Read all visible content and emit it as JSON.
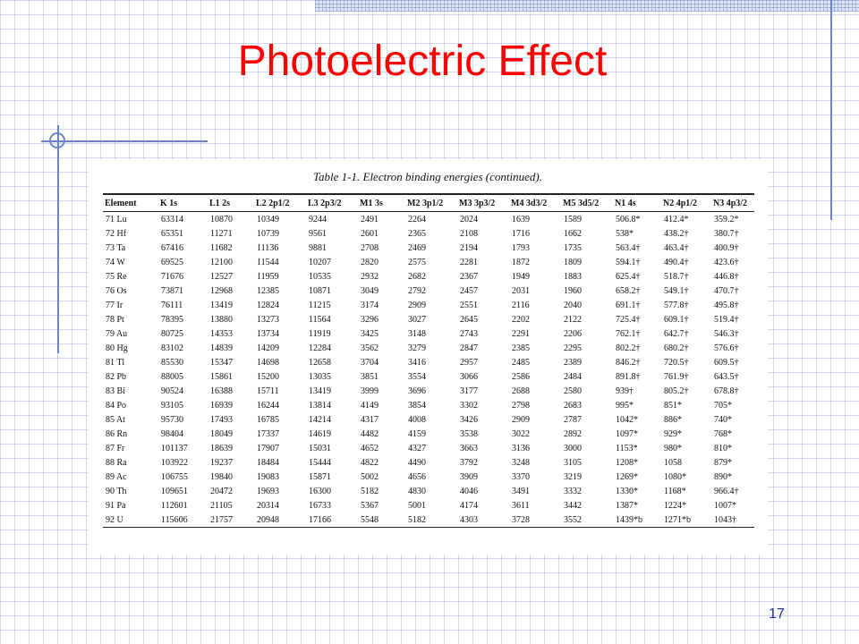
{
  "slide": {
    "title": "Photoelectric Effect",
    "page_number": "17",
    "accent_color": "#6d82c4",
    "title_color": "#ff0000"
  },
  "table": {
    "caption": "Table 1-1.  Electron binding energies (continued).",
    "headers": [
      "Element",
      "K 1s",
      "L1 2s",
      "L2 2p1/2",
      "L3 2p3/2",
      "M1 3s",
      "M2 3p1/2",
      "M3 3p3/2",
      "M4 3d3/2",
      "M5 3d5/2",
      "N1 4s",
      "N2 4p1/2",
      "N3 4p3/2"
    ],
    "rows": [
      [
        "71  Lu",
        "63314",
        "10870",
        "10349",
        "9244",
        "2491",
        "2264",
        "2024",
        "1639",
        "1589",
        "506.8*",
        "412.4*",
        "359.2*"
      ],
      [
        "72  Hf",
        "65351",
        "11271",
        "10739",
        "9561",
        "2601",
        "2365",
        "2108",
        "1716",
        "1662",
        "538*",
        "438.2†",
        "380.7†"
      ],
      [
        "73  Ta",
        "67416",
        "11682",
        "11136",
        "9881",
        "2708",
        "2469",
        "2194",
        "1793",
        "1735",
        "563.4†",
        "463.4†",
        "400.9†"
      ],
      [
        "74  W",
        "69525",
        "12100",
        "11544",
        "10207",
        "2820",
        "2575",
        "2281",
        "1872",
        "1809",
        "594.1†",
        "490.4†",
        "423.6†"
      ],
      [
        "75  Re",
        "71676",
        "12527",
        "11959",
        "10535",
        "2932",
        "2682",
        "2367",
        "1949",
        "1883",
        "625.4†",
        "518.7†",
        "446.8†"
      ],
      [
        "76  Os",
        "73871",
        "12968",
        "12385",
        "10871",
        "3049",
        "2792",
        "2457",
        "2031",
        "1960",
        "658.2†",
        "549.1†",
        "470.7†"
      ],
      [
        "77  Ir",
        "76111",
        "13419",
        "12824",
        "11215",
        "3174",
        "2909",
        "2551",
        "2116",
        "2040",
        "691.1†",
        "577.8†",
        "495.8†"
      ],
      [
        "78  Pt",
        "78395",
        "13880",
        "13273",
        "11564",
        "3296",
        "3027",
        "2645",
        "2202",
        "2122",
        "725.4†",
        "609.1†",
        "519.4†"
      ],
      [
        "79  Au",
        "80725",
        "14353",
        "13734",
        "11919",
        "3425",
        "3148",
        "2743",
        "2291",
        "2206",
        "762.1†",
        "642.7†",
        "546.3†"
      ],
      [
        "80  Hg",
        "83102",
        "14839",
        "14209",
        "12284",
        "3562",
        "3279",
        "2847",
        "2385",
        "2295",
        "802.2†",
        "680.2†",
        "576.6†"
      ],
      [
        "81  Tl",
        "85530",
        "15347",
        "14698",
        "12658",
        "3704",
        "3416",
        "2957",
        "2485",
        "2389",
        "846.2†",
        "720.5†",
        "609.5†"
      ],
      [
        "82  Pb",
        "88005",
        "15861",
        "15200",
        "13035",
        "3851",
        "3554",
        "3066",
        "2586",
        "2484",
        "891.8†",
        "761.9†",
        "643.5†"
      ],
      [
        "83  Bi",
        "90524",
        "16388",
        "15711",
        "13419",
        "3999",
        "3696",
        "3177",
        "2688",
        "2580",
        "939†",
        "805.2†",
        "678.8†"
      ],
      [
        "84  Po",
        "93105",
        "16939",
        "16244",
        "13814",
        "4149",
        "3854",
        "3302",
        "2798",
        "2683",
        "995*",
        "851*",
        "705*"
      ],
      [
        "85  At",
        "95730",
        "17493",
        "16785",
        "14214",
        "4317",
        "4008",
        "3426",
        "2909",
        "2787",
        "1042*",
        "886*",
        "740*"
      ],
      [
        "86  Rn",
        "98404",
        "18049",
        "17337",
        "14619",
        "4482",
        "4159",
        "3538",
        "3022",
        "2892",
        "1097*",
        "929*",
        "768*"
      ],
      [
        "87  Fr",
        "101137",
        "18639",
        "17907",
        "15031",
        "4652",
        "4327",
        "3663",
        "3136",
        "3000",
        "1153*",
        "980*",
        "810*"
      ],
      [
        "88  Ra",
        "103922",
        "19237",
        "18484",
        "15444",
        "4822",
        "4490",
        "3792",
        "3248",
        "3105",
        "1208*",
        "1058",
        "879*"
      ],
      [
        "89  Ac",
        "106755",
        "19840",
        "19083",
        "15871",
        "5002",
        "4656",
        "3909",
        "3370",
        "3219",
        "1269*",
        "1080*",
        "890*"
      ],
      [
        "90  Th",
        "109651",
        "20472",
        "19693",
        "16300",
        "5182",
        "4830",
        "4046",
        "3491",
        "3332",
        "1330*",
        "1168*",
        "966.4†"
      ],
      [
        "91  Pa",
        "112601",
        "21105",
        "20314",
        "16733",
        "5367",
        "5001",
        "4174",
        "3611",
        "3442",
        "1387*",
        "1224*",
        "1007*"
      ],
      [
        "92  U",
        "115606",
        "21757",
        "20948",
        "17166",
        "5548",
        "5182",
        "4303",
        "3728",
        "3552",
        "1439*b",
        "1271*b",
        "1043†"
      ]
    ]
  }
}
